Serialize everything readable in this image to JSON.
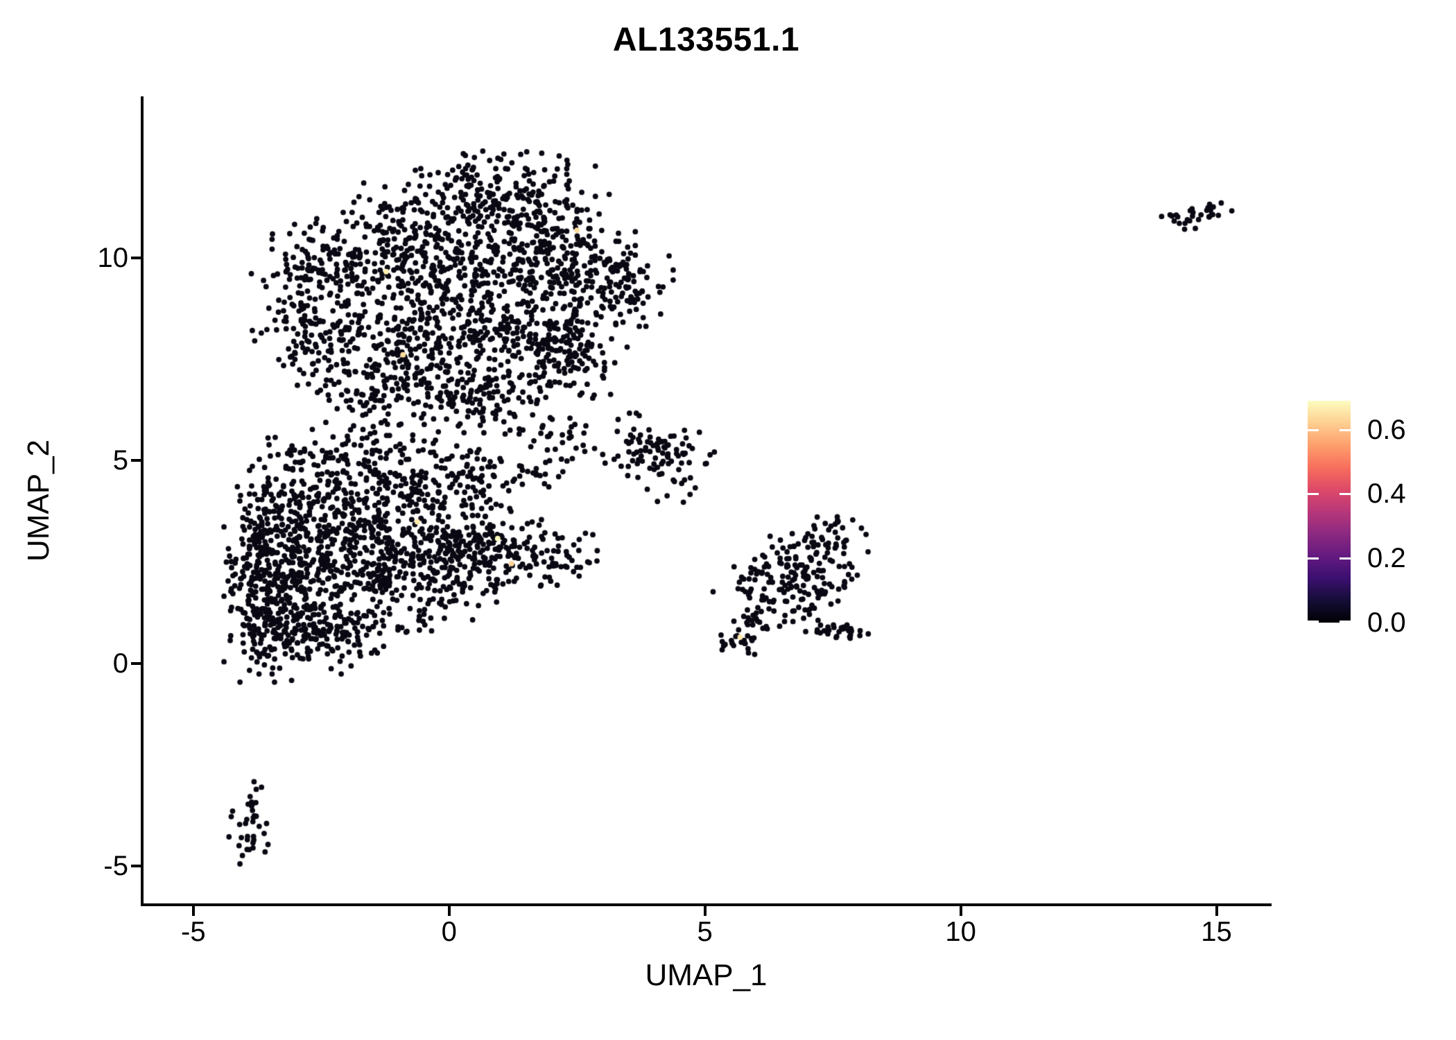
{
  "chart_data": {
    "type": "scatter",
    "title": "AL133551.1",
    "xlabel": "UMAP_1",
    "ylabel": "UMAP_2",
    "xlim": [
      -6.0,
      16.05
    ],
    "ylim": [
      -5.95,
      13.98
    ],
    "x_ticks": [
      -5,
      0,
      5,
      10,
      15
    ],
    "x_tick_labels": [
      "-5",
      "0",
      "5",
      "10",
      "15"
    ],
    "y_ticks": [
      -5,
      0,
      5,
      10
    ],
    "y_tick_labels": [
      "-5",
      "0",
      "5",
      "10"
    ],
    "grid": false,
    "background": "#ffffff",
    "point_color": "#0a0812",
    "point_radius_px": 3.9,
    "seed": 1337,
    "colorbar": {
      "position": "right",
      "vmin": 0.0,
      "vmax": 0.69,
      "tick_values": [
        0.0,
        0.2,
        0.4,
        0.6
      ],
      "tick_labels": [
        "0.0",
        "0.2",
        "0.4",
        "0.6"
      ],
      "colormap": "magma",
      "stops": [
        "#000004",
        "#140E36",
        "#3B0F70",
        "#641A80",
        "#8C2981",
        "#B73779",
        "#DE4968",
        "#F76F5C",
        "#FE9F6D",
        "#FECF92",
        "#FCFDBF"
      ]
    },
    "clusters": [
      {
        "name": "upper-left-main",
        "blobs": [
          [
            1.1,
            11.8,
            0.8,
            0.45,
            110
          ],
          [
            0.1,
            11.1,
            1.0,
            0.5,
            140
          ],
          [
            2.1,
            10.7,
            0.7,
            0.5,
            100
          ],
          [
            -1.7,
            9.8,
            0.8,
            0.6,
            190
          ],
          [
            0.3,
            9.7,
            1.0,
            0.7,
            240
          ],
          [
            2.2,
            9.4,
            0.8,
            0.6,
            180
          ],
          [
            3.5,
            9.3,
            0.4,
            0.45,
            70
          ],
          [
            -2.9,
            9.0,
            0.45,
            0.8,
            90
          ],
          [
            -2.4,
            7.7,
            0.45,
            0.55,
            60
          ],
          [
            -0.9,
            8.1,
            0.9,
            0.55,
            160
          ],
          [
            0.9,
            7.9,
            0.8,
            0.55,
            140
          ],
          [
            2.1,
            7.9,
            0.6,
            0.45,
            80
          ],
          [
            -0.5,
            6.8,
            0.75,
            0.45,
            100
          ],
          [
            0.5,
            6.4,
            0.55,
            0.35,
            60
          ],
          [
            -1.6,
            6.5,
            0.5,
            0.4,
            55
          ],
          [
            1.9,
            7.0,
            0.5,
            0.45,
            45
          ],
          [
            2.6,
            7.6,
            0.4,
            0.55,
            28
          ],
          [
            1.6,
            5.9,
            0.45,
            0.3,
            22
          ],
          [
            2.3,
            5.6,
            0.3,
            0.25,
            14
          ]
        ]
      },
      {
        "name": "lower-left-main",
        "blobs": [
          [
            -3.8,
            1.7,
            0.28,
            0.85,
            85
          ],
          [
            -3.65,
            3.1,
            0.32,
            0.8,
            75
          ],
          [
            -3.3,
            2.4,
            0.5,
            1.3,
            200
          ],
          [
            -2.6,
            1.5,
            0.6,
            0.8,
            160
          ],
          [
            -2.7,
            3.9,
            0.6,
            0.85,
            160
          ],
          [
            -1.6,
            3.6,
            0.8,
            0.75,
            190
          ],
          [
            -1.3,
            2.2,
            0.8,
            0.65,
            150
          ],
          [
            -0.3,
            2.9,
            0.75,
            0.6,
            150
          ],
          [
            0.7,
            2.9,
            0.65,
            0.45,
            100
          ],
          [
            1.6,
            2.7,
            0.55,
            0.35,
            60
          ],
          [
            2.35,
            2.5,
            0.28,
            0.2,
            16
          ],
          [
            -0.7,
            4.7,
            0.85,
            0.5,
            120
          ],
          [
            0.6,
            4.6,
            0.5,
            0.35,
            50
          ],
          [
            1.7,
            4.8,
            0.3,
            0.22,
            18
          ],
          [
            -3.0,
            0.75,
            0.55,
            0.3,
            80
          ],
          [
            -1.9,
            0.95,
            0.6,
            0.35,
            55
          ],
          [
            0.3,
            1.8,
            0.6,
            0.35,
            45
          ],
          [
            -2.2,
            5.3,
            0.4,
            0.3,
            18
          ]
        ]
      },
      {
        "name": "mid-small",
        "blobs": [
          [
            3.55,
            5.4,
            0.3,
            0.35,
            30
          ],
          [
            4.35,
            4.9,
            0.38,
            0.42,
            55
          ],
          [
            4.0,
            5.2,
            0.25,
            0.25,
            12
          ]
        ]
      },
      {
        "name": "right-middle",
        "blobs": [
          [
            7.0,
            2.35,
            0.5,
            0.38,
            85
          ],
          [
            7.2,
            2.95,
            0.45,
            0.22,
            40
          ],
          [
            6.15,
            1.95,
            0.45,
            0.3,
            40
          ],
          [
            6.85,
            1.5,
            0.45,
            0.28,
            25
          ],
          [
            5.95,
            1.15,
            0.3,
            0.25,
            25
          ],
          [
            5.62,
            0.62,
            0.22,
            0.18,
            22
          ],
          [
            7.6,
            0.82,
            0.33,
            0.13,
            32
          ],
          [
            7.45,
            3.5,
            0.2,
            0.18,
            8
          ]
        ]
      },
      {
        "name": "far-right-small",
        "blobs": [
          [
            14.35,
            10.95,
            0.22,
            0.12,
            13
          ],
          [
            14.75,
            11.15,
            0.25,
            0.11,
            17
          ]
        ]
      },
      {
        "name": "bottom-left-small",
        "blobs": [
          [
            -3.85,
            -3.4,
            0.1,
            0.3,
            13
          ],
          [
            -3.92,
            -4.3,
            0.2,
            0.3,
            24
          ]
        ]
      }
    ],
    "highlight_points": [
      {
        "x": -1.23,
        "y": 9.66,
        "value": 0.67
      },
      {
        "x": -0.9,
        "y": 7.61,
        "value": 0.64
      },
      {
        "x": -0.62,
        "y": 3.49,
        "value": 0.66
      },
      {
        "x": 0.95,
        "y": 3.08,
        "value": 0.69
      },
      {
        "x": 1.22,
        "y": 2.46,
        "value": 0.63
      },
      {
        "x": 5.69,
        "y": 0.65,
        "value": 0.66
      },
      {
        "x": 2.5,
        "y": 10.68,
        "value": 0.64
      }
    ]
  }
}
